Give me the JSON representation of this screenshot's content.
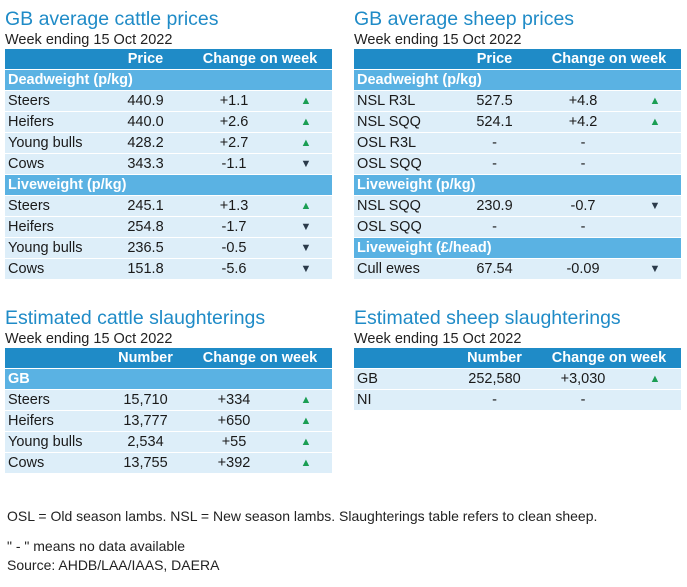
{
  "cattle_prices": {
    "title": "GB average cattle prices",
    "subtitle": "Week ending 15 Oct 2022",
    "headers": [
      "",
      "Price",
      "Change on week"
    ],
    "sections": [
      {
        "label": "Deadweight (p/kg)",
        "rows": [
          {
            "name": "Steers",
            "value": "440.9",
            "change": "+1.1",
            "dir": "up"
          },
          {
            "name": "Heifers",
            "value": "440.0",
            "change": "+2.6",
            "dir": "up"
          },
          {
            "name": "Young bulls",
            "value": "428.2",
            "change": "+2.7",
            "dir": "up"
          },
          {
            "name": "Cows",
            "value": "343.3",
            "change": "-1.1",
            "dir": "down"
          }
        ]
      },
      {
        "label": "Liveweight (p/kg)",
        "rows": [
          {
            "name": "Steers",
            "value": "245.1",
            "change": "+1.3",
            "dir": "up"
          },
          {
            "name": "Heifers",
            "value": "254.8",
            "change": "-1.7",
            "dir": "down"
          },
          {
            "name": "Young bulls",
            "value": "236.5",
            "change": "-0.5",
            "dir": "down"
          },
          {
            "name": "Cows",
            "value": "151.8",
            "change": "-5.6",
            "dir": "down"
          }
        ]
      }
    ]
  },
  "sheep_prices": {
    "title": "GB average sheep prices",
    "subtitle": "Week ending 15 Oct 2022",
    "headers": [
      "",
      "Price",
      "Change on week"
    ],
    "sections": [
      {
        "label": "Deadweight (p/kg)",
        "rows": [
          {
            "name": "NSL R3L",
            "value": "527.5",
            "change": "+4.8",
            "dir": "up"
          },
          {
            "name": "NSL SQQ",
            "value": "524.1",
            "change": "+4.2",
            "dir": "up"
          },
          {
            "name": "OSL R3L",
            "value": "-",
            "change": "-",
            "dir": ""
          },
          {
            "name": "OSL SQQ",
            "value": "-",
            "change": "-",
            "dir": ""
          }
        ]
      },
      {
        "label": "Liveweight (p/kg)",
        "rows": [
          {
            "name": "NSL SQQ",
            "value": "230.9",
            "change": "-0.7",
            "dir": "down"
          },
          {
            "name": "OSL SQQ",
            "value": "-",
            "change": "-",
            "dir": ""
          }
        ]
      },
      {
        "label": "Liveweight (£/head)",
        "rows": [
          {
            "name": "Cull ewes",
            "value": "67.54",
            "change": "-0.09",
            "dir": "down"
          }
        ]
      }
    ]
  },
  "cattle_slaughter": {
    "title": "Estimated cattle slaughterings",
    "subtitle": "Week ending 15 Oct 2022",
    "headers": [
      "",
      "Number",
      "Change on week"
    ],
    "sections": [
      {
        "label": "GB",
        "rows": [
          {
            "name": "Steers",
            "value": "15,710",
            "change": "+334",
            "dir": "up"
          },
          {
            "name": "Heifers",
            "value": "13,777",
            "change": "+650",
            "dir": "up"
          },
          {
            "name": "Young bulls",
            "value": "2,534",
            "change": "+55",
            "dir": "up"
          },
          {
            "name": "Cows",
            "value": "13,755",
            "change": "+392",
            "dir": "up"
          }
        ]
      }
    ]
  },
  "sheep_slaughter": {
    "title": "Estimated sheep slaughterings",
    "subtitle": "Week ending 15 Oct 2022",
    "headers": [
      "",
      "Number",
      "Change on week"
    ],
    "sections": [
      {
        "label": "",
        "rows": [
          {
            "name": "GB",
            "value": "252,580",
            "change": "+3,030",
            "dir": "up"
          },
          {
            "name": "NI",
            "value": "-",
            "change": "-",
            "dir": ""
          }
        ]
      }
    ]
  },
  "notes": {
    "abbrev": "OSL = Old season lambs. NSL = New season lambs. Slaughterings table refers to clean sheep.",
    "nodata": "\" - \" means no data available",
    "source": "Source: AHDB/LAA/IAAS, DAERA"
  },
  "icons": {
    "up": "▲",
    "down": "▼"
  },
  "colors": {
    "header": "#1f8bc7",
    "section": "#5ab2e3",
    "row": "#ddeef9",
    "title": "#1f8bc7",
    "up": "#1a9e54",
    "down": "#2b3a4a"
  }
}
